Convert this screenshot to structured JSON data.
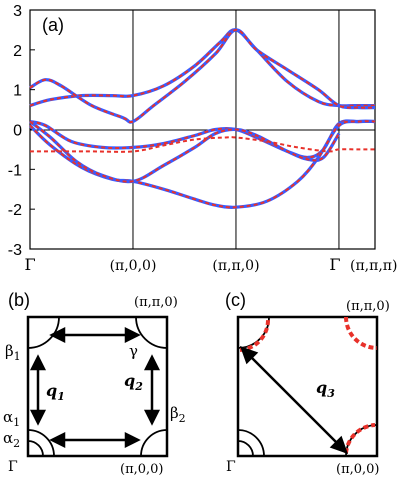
{
  "panel_a": {
    "label": "(a)",
    "y_ticks": [
      "3",
      "2",
      "1",
      "0",
      "-1",
      "-2",
      "-3"
    ],
    "x_ticks": [
      "Γ",
      "(π,0,0)",
      "(π,π,0)",
      "Γ",
      "(π,π,π)"
    ],
    "colors": {
      "solid": "#3a5cff",
      "dashed": "#e8312a"
    }
  },
  "panel_b": {
    "label": "(b)",
    "corner_top_right": "(π,π,0)",
    "corner_bottom_right": "(π,0,0)",
    "corner_bottom_left": "Γ",
    "beta1": "β",
    "beta1_sub": "1",
    "gamma": "γ",
    "alpha1": "α",
    "alpha1_sub": "1",
    "alpha2": "α",
    "alpha2_sub": "2",
    "beta2": "β",
    "beta2_sub": "2",
    "q1": "q",
    "q1_sub": "1",
    "q2": "q",
    "q2_sub": "2"
  },
  "panel_c": {
    "label": "(c)",
    "corner_top_right": "(π,π,0)",
    "corner_bottom_right": "(π,0,0)",
    "corner_bottom_left": "Γ",
    "q3": "q",
    "q3_sub": "3"
  },
  "chart_data": {
    "type": "line",
    "title": "",
    "xlabel": "",
    "ylabel": "",
    "ylim": [
      -3,
      3
    ],
    "y_ticks": [
      3,
      2,
      1,
      0,
      -1,
      -2,
      -3
    ],
    "x_tick_labels": [
      "Γ",
      "(π,0,0)",
      "(π,π,0)",
      "Γ",
      "(π,π,π)"
    ],
    "x_tick_positions": [
      0,
      1,
      2,
      3,
      3.35
    ],
    "xlim": [
      0,
      3.35
    ],
    "grid": "vertical lines at high-symmetry points",
    "series": [
      {
        "style": "solid-blue-with-red-dashed-overlay",
        "x": [
          0,
          0.2,
          0.5,
          0.8,
          1.0,
          1.3,
          1.6,
          1.85,
          2.0,
          2.2,
          2.5,
          2.8,
          3.0,
          3.15,
          3.35
        ],
        "y": [
          0.6,
          0.75,
          0.85,
          0.85,
          0.85,
          1.1,
          1.6,
          2.2,
          2.5,
          2.0,
          1.2,
          0.7,
          0.6,
          0.6,
          0.6
        ]
      },
      {
        "style": "solid-blue-with-red-dashed-overlay",
        "x": [
          0,
          0.15,
          0.3,
          0.6,
          0.9,
          1.0,
          1.2,
          1.5,
          1.8,
          2.0,
          2.2,
          2.5,
          2.8,
          3.0,
          3.2,
          3.35
        ],
        "y": [
          1.05,
          1.25,
          1.1,
          0.6,
          0.3,
          0.2,
          0.6,
          1.2,
          1.9,
          2.5,
          2.0,
          1.5,
          1.0,
          0.6,
          0.55,
          0.55
        ]
      },
      {
        "style": "solid-blue-with-red-dashed-overlay",
        "x": [
          0,
          0.15,
          0.4,
          0.7,
          1.0,
          1.3,
          1.6,
          1.8,
          2.0,
          2.2,
          2.5,
          2.7,
          2.85,
          3.0,
          3.2,
          3.35
        ],
        "y": [
          0.2,
          0.1,
          -0.3,
          -0.45,
          -0.45,
          -0.35,
          -0.15,
          0.0,
          0.0,
          -0.2,
          -0.55,
          -0.7,
          -0.5,
          0.15,
          0.2,
          0.2
        ]
      },
      {
        "style": "solid-blue-with-red-dashed-overlay",
        "x": [
          0,
          0.2,
          0.5,
          0.8,
          1.0,
          1.3,
          1.6,
          1.8,
          2.0,
          2.3,
          2.6,
          2.8,
          3.0,
          3.2,
          3.35
        ],
        "y": [
          0.1,
          -0.4,
          -0.95,
          -1.25,
          -1.3,
          -1.5,
          -1.75,
          -1.9,
          -1.95,
          -1.8,
          -1.3,
          -0.7,
          0.1,
          0.2,
          0.2
        ]
      },
      {
        "style": "solid-blue-with-red-dashed-overlay",
        "x": [
          0,
          0.2,
          0.45,
          0.7,
          1.0,
          1.3,
          1.6,
          1.8,
          2.0,
          2.2,
          2.5,
          2.7,
          2.85,
          3.0
        ],
        "y": [
          0.2,
          -0.2,
          -0.8,
          -1.15,
          -1.3,
          -0.9,
          -0.45,
          -0.1,
          0.0,
          -0.15,
          -0.55,
          -0.75,
          -0.7,
          -0.1
        ]
      },
      {
        "style": "dashed-red-only",
        "x": [
          0,
          0.3,
          0.6,
          1.0,
          1.3,
          1.6,
          1.9,
          2.0,
          2.3,
          2.6,
          2.9,
          3.0,
          3.2,
          3.35
        ],
        "y": [
          -0.55,
          -0.55,
          -0.55,
          -0.55,
          -0.4,
          -0.25,
          -0.2,
          -0.2,
          -0.3,
          -0.45,
          -0.55,
          -0.5,
          -0.5,
          -0.5
        ]
      }
    ]
  }
}
